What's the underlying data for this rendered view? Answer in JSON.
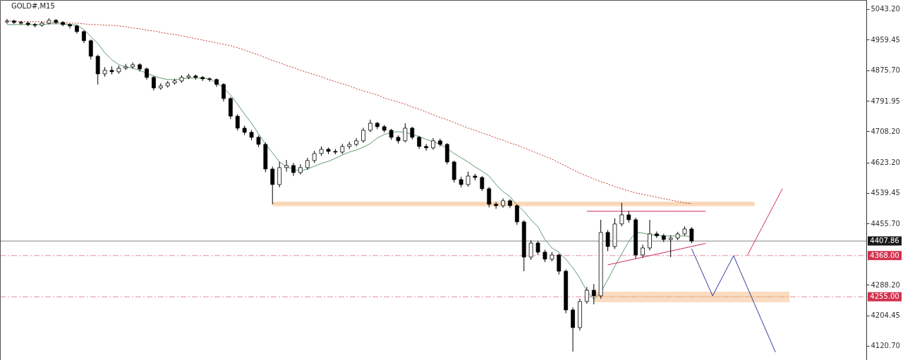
{
  "chart_data": {
    "type": "candlestick",
    "title": "GOLD#,M15",
    "categories": [
      null,
      null,
      null,
      null,
      null,
      null,
      null,
      null,
      null,
      null,
      null,
      null,
      null,
      null,
      null,
      null,
      null,
      null,
      null,
      null,
      null,
      null,
      null,
      null,
      null,
      null,
      null,
      null,
      null,
      null,
      null,
      null,
      null,
      null,
      null,
      null,
      null,
      null,
      null,
      null,
      null,
      null,
      null,
      null,
      null,
      null,
      null,
      null,
      null,
      null,
      null,
      null,
      null,
      null,
      null,
      null,
      null,
      null,
      null,
      null,
      null,
      null,
      null,
      null,
      null,
      null,
      null,
      null,
      null,
      null,
      null,
      null,
      null,
      null,
      null,
      null,
      null,
      null,
      null,
      null,
      null,
      null,
      null,
      null,
      null,
      null,
      null,
      null,
      null,
      null,
      null,
      null,
      null,
      null,
      null,
      null,
      null,
      null,
      null,
      null,
      null,
      null,
      null,
      null,
      null,
      null,
      null,
      null,
      null,
      null,
      null,
      null,
      null,
      null,
      null,
      null,
      null,
      null,
      null,
      null,
      null,
      null,
      null
    ],
    "ohlc": [
      [
        5008.0,
        5016,
        5003,
        5010.4
      ],
      [
        5010.4,
        5014,
        5002,
        5006.5
      ],
      [
        5006.5,
        5011,
        5000,
        5004.6
      ],
      [
        5004.6,
        5009,
        4996,
        5000.7
      ],
      [
        5000.7,
        5005,
        4993,
        4998.8
      ],
      [
        4998.8,
        5009,
        4995,
        5004.6
      ],
      [
        5004.6,
        5018,
        5001,
        5012.3
      ],
      [
        5012.3,
        5016,
        5002,
        5006.5
      ],
      [
        5006.5,
        5010,
        4996,
        5000.7
      ],
      [
        5000.7,
        5004,
        4990,
        4996.9
      ],
      [
        4996.9,
        5000,
        4976,
        4981.4
      ],
      [
        4981.4,
        4985,
        4950,
        4956.4
      ],
      [
        4956.4,
        4960,
        4905,
        4913.9
      ],
      [
        4913.9,
        4918,
        4836.7,
        4865.6
      ],
      [
        4865.6,
        4884,
        4858,
        4875.3
      ],
      [
        4875.3,
        4886,
        4864,
        4871.4
      ],
      [
        4871.4,
        4888,
        4866,
        4881.1
      ],
      [
        4881.1,
        4893,
        4876,
        4884.9
      ],
      [
        4884.9,
        4897,
        4880,
        4890.7
      ],
      [
        4890.7,
        4895,
        4872,
        4879.2
      ],
      [
        4879.2,
        4883,
        4850,
        4856.0
      ],
      [
        4856.0,
        4860,
        4820,
        4827.0
      ],
      [
        4827.0,
        4840,
        4822,
        4832.8
      ],
      [
        4832.8,
        4846,
        4828,
        4840.6
      ],
      [
        4840.6,
        4852,
        4836,
        4846.3
      ],
      [
        4846.3,
        4862,
        4841,
        4856.0
      ],
      [
        4856.0,
        4866,
        4851,
        4859.9
      ],
      [
        4859.9,
        4864,
        4850,
        4856.0
      ],
      [
        4856.0,
        4860,
        4846,
        4852.1
      ],
      [
        4852.1,
        4856,
        4844,
        4850.2
      ],
      [
        4850.2,
        4853,
        4830,
        4836.7
      ],
      [
        4836.7,
        4840,
        4790,
        4798.1
      ],
      [
        4798.1,
        4802,
        4742,
        4749.8
      ],
      [
        4749.8,
        4755,
        4710,
        4717.0
      ],
      [
        4717.0,
        4724,
        4698,
        4705.5
      ],
      [
        4705.5,
        4712,
        4684,
        4691.9
      ],
      [
        4691.9,
        4697,
        4665,
        4672.6
      ],
      [
        4672.6,
        4678,
        4596,
        4605.1
      ],
      [
        4605.1,
        4612,
        4508.6,
        4562.6
      ],
      [
        4562.6,
        4625,
        4555,
        4609.0
      ],
      [
        4609.0,
        4630,
        4598,
        4614.7
      ],
      [
        4614.7,
        4622,
        4586,
        4595.4
      ],
      [
        4595.4,
        4618,
        4590,
        4609.0
      ],
      [
        4609.0,
        4636,
        4603,
        4628.3
      ],
      [
        4628.3,
        4655,
        4622,
        4647.6
      ],
      [
        4647.6,
        4667,
        4641,
        4659.1
      ],
      [
        4659.1,
        4664,
        4646,
        4653.3
      ],
      [
        4653.3,
        4660,
        4645,
        4651.4
      ],
      [
        4651.4,
        4674,
        4646,
        4666.9
      ],
      [
        4666.9,
        4680,
        4660,
        4672.6
      ],
      [
        4672.6,
        4690,
        4667,
        4682.3
      ],
      [
        4682.3,
        4718,
        4677,
        4711.2
      ],
      [
        4711.2,
        4740.2,
        4706,
        4730.5
      ],
      [
        4730.5,
        4734,
        4714,
        4720.9
      ],
      [
        4720.9,
        4726,
        4705,
        4711.2
      ],
      [
        4711.2,
        4715,
        4685,
        4691.9
      ],
      [
        4691.9,
        4697,
        4675,
        4682.3
      ],
      [
        4682.3,
        4730.5,
        4678,
        4717.0
      ],
      [
        4717.0,
        4721,
        4686,
        4691.9
      ],
      [
        4691.9,
        4696,
        4660,
        4666.9
      ],
      [
        4666.9,
        4674,
        4655,
        4663.0
      ],
      [
        4663.0,
        4690,
        4658,
        4682.3
      ],
      [
        4682.3,
        4688,
        4667,
        4672.6
      ],
      [
        4672.6,
        4676,
        4618,
        4624.4
      ],
      [
        4624.4,
        4628,
        4568,
        4576.1
      ],
      [
        4576.1,
        4584,
        4555,
        4562.6
      ],
      [
        4562.6,
        4598,
        4557,
        4585.8
      ],
      [
        4585.8,
        4592,
        4574,
        4581.9
      ],
      [
        4581.9,
        4586,
        4545,
        4551.1
      ],
      [
        4551.1,
        4556,
        4500,
        4508.6
      ],
      [
        4508.6,
        4515,
        4496,
        4504.7
      ],
      [
        4504.7,
        4525,
        4499,
        4518.2
      ],
      [
        4518.2,
        4523,
        4498,
        4504.7
      ],
      [
        4504.7,
        4508,
        4452,
        4460.3
      ],
      [
        4460.3,
        4465,
        4325.2,
        4363.8
      ],
      [
        4363.8,
        4410,
        4356,
        4402.4
      ],
      [
        4402.4,
        4408,
        4370,
        4377.4
      ],
      [
        4377.4,
        4384,
        4350,
        4358.1
      ],
      [
        4358.1,
        4378,
        4352,
        4369.6
      ],
      [
        4369.6,
        4374,
        4316,
        4325.2
      ],
      [
        4325.2,
        4330,
        4210,
        4219.1
      ],
      [
        4219.1,
        4226,
        4105,
        4170.8
      ],
      [
        4170.8,
        4250,
        4163,
        4242.3
      ],
      [
        4242.3,
        4282,
        4236,
        4273.1
      ],
      [
        4273.1,
        4290,
        4234.5,
        4257.7
      ],
      [
        4257.7,
        4466.1,
        4250,
        4431.4
      ],
      [
        4431.4,
        4438,
        4380,
        4392.8
      ],
      [
        4392.8,
        4470,
        4386,
        4454.6
      ],
      [
        4454.6,
        4512.5,
        4448,
        4479.6
      ],
      [
        4479.6,
        4490,
        4458,
        4466.1
      ],
      [
        4466.1,
        4472,
        4360,
        4369.6
      ],
      [
        4369.6,
        4398,
        4362,
        4388.9
      ],
      [
        4388.9,
        4466.1,
        4382,
        4427.5
      ],
      [
        4427.5,
        4434,
        4416,
        4422.0
      ],
      [
        4422.0,
        4428,
        4405,
        4412.1
      ],
      [
        4412.1,
        4424,
        4363.8,
        4416.0
      ],
      [
        4416.0,
        4433,
        4410,
        4427.5
      ],
      [
        4427.5,
        4448,
        4422,
        4441.0
      ],
      [
        4441.0,
        4446,
        4402,
        4407.86
      ],
      null,
      null,
      null,
      null,
      null,
      null,
      null,
      null,
      null,
      null,
      null,
      null,
      null,
      null,
      null,
      null,
      null,
      null,
      null,
      null,
      null,
      null,
      null,
      null
    ],
    "series": [
      {
        "type": "line",
        "color": "#f6c594",
        "values": [
          null,
          null,
          null,
          null,
          null,
          null,
          null,
          null,
          null,
          null,
          null,
          null,
          null,
          null,
          null,
          null,
          null,
          null,
          null,
          null,
          null,
          null,
          null,
          null,
          null,
          null,
          null,
          null,
          null,
          null,
          null,
          null,
          null,
          null,
          null,
          null,
          null,
          null,
          4510,
          4510,
          4510,
          4510,
          4510,
          4510,
          4510,
          4510,
          4510,
          4510,
          4510,
          4510,
          4510,
          4510,
          4510,
          4510,
          4510,
          4510,
          4510,
          4510,
          4510,
          4510,
          4510,
          4510,
          4510,
          4510,
          4510,
          4510,
          4510,
          4510,
          4510,
          4510,
          4510,
          4510,
          4510,
          4510,
          4510,
          4510,
          4510,
          4510,
          4510,
          4510,
          4510,
          4510,
          4510,
          4510,
          4510,
          4510,
          4510,
          4510,
          4510,
          4510,
          4510,
          4510,
          4510,
          4510,
          4510,
          4510,
          4510,
          4510,
          4510,
          4510,
          4510,
          4510,
          4510,
          4510,
          4510,
          4510,
          4510,
          4510,
          null,
          null,
          null,
          null,
          null,
          null,
          null,
          null,
          null,
          null,
          null,
          null,
          null,
          null,
          null
        ],
        "upper": [
          null,
          null,
          null,
          null,
          null,
          null,
          null,
          null,
          null,
          null,
          null,
          null,
          null,
          null,
          null,
          null,
          null,
          null,
          null,
          null,
          null,
          null,
          null,
          null,
          null,
          null,
          null,
          null,
          null,
          null,
          null,
          null,
          null,
          null,
          null,
          null,
          null,
          null,
          4516.3,
          4516.3,
          4516.3,
          4516.3,
          4516.3,
          4516.3,
          4516.3,
          4516.3,
          4516.3,
          4516.3,
          4516.3,
          4516.3,
          4516.3,
          4516.3,
          4516.3,
          4516.3,
          4516.3,
          4516.3,
          4516.3,
          4516.3,
          4516.3,
          4516.3,
          4516.3,
          4516.3,
          4516.3,
          4516.3,
          4516.3,
          4516.3,
          4516.3,
          4516.3,
          4516.3,
          4516.3,
          4516.3,
          4516.3,
          4516.3,
          4516.3,
          4516.3,
          4516.3,
          4516.3,
          4516.3,
          4516.3,
          4516.3,
          4516.3,
          4516.3,
          4516.3,
          4516.3,
          4516.3,
          4516.3,
          4516.3,
          4516.3,
          4516.3,
          4516.3,
          4516.3,
          4516.3,
          4516.3,
          4516.3,
          4516.3,
          4516.3,
          4516.3,
          4516.3,
          4516.3,
          4516.3,
          4516.3,
          4516.3,
          4516.3,
          4516.3,
          4516.3,
          4516.3,
          4516.3,
          4516.3,
          null,
          null,
          null,
          null,
          null,
          null,
          null,
          null,
          null,
          null,
          null,
          null,
          null,
          null,
          null
        ],
        "lower": [
          null,
          null,
          null,
          null,
          null,
          null,
          null,
          null,
          null,
          null,
          null,
          null,
          null,
          null,
          null,
          null,
          null,
          null,
          null,
          null,
          null,
          null,
          null,
          null,
          null,
          null,
          null,
          null,
          null,
          null,
          null,
          null,
          null,
          null,
          null,
          null,
          null,
          null,
          4502.8,
          4502.8,
          4502.8,
          4502.8,
          4502.8,
          4502.8,
          4502.8,
          4502.8,
          4502.8,
          4502.8,
          4502.8,
          4502.8,
          4502.8,
          4502.8,
          4502.8,
          4502.8,
          4502.8,
          4502.8,
          4502.8,
          4502.8,
          4502.8,
          4502.8,
          4502.8,
          4502.8,
          4502.8,
          4502.8,
          4502.8,
          4502.8,
          4502.8,
          4502.8,
          4502.8,
          4502.8,
          4502.8,
          4502.8,
          4502.8,
          4502.8,
          4502.8,
          4502.8,
          4502.8,
          4502.8,
          4502.8,
          4502.8,
          4502.8,
          4502.8,
          4502.8,
          4502.8,
          4502.8,
          4502.8,
          4502.8,
          4502.8,
          4502.8,
          4502.8,
          4502.8,
          4502.8,
          4502.8,
          4502.8,
          4502.8,
          4502.8,
          4502.8,
          4502.8,
          4502.8,
          4502.8,
          4502.8,
          4502.8,
          4502.8,
          4502.8,
          4502.8,
          4502.8,
          4502.8,
          4502.8,
          null,
          null,
          null,
          null,
          null,
          null,
          null,
          null,
          null,
          null,
          null,
          null,
          null,
          null,
          null
        ]
      },
      {
        "type": "line",
        "color": "#f4c08e",
        "values": [
          null,
          null,
          null,
          null,
          null,
          null,
          null,
          null,
          null,
          null,
          null,
          null,
          null,
          null,
          null,
          null,
          null,
          null,
          null,
          null,
          null,
          null,
          null,
          null,
          null,
          null,
          null,
          null,
          null,
          null,
          null,
          null,
          null,
          null,
          null,
          null,
          null,
          null,
          null,
          null,
          null,
          null,
          null,
          null,
          null,
          null,
          null,
          null,
          null,
          null,
          null,
          null,
          null,
          null,
          null,
          null,
          null,
          null,
          null,
          null,
          null,
          null,
          null,
          null,
          null,
          null,
          null,
          null,
          null,
          null,
          null,
          null,
          null,
          null,
          null,
          null,
          null,
          null,
          null,
          null,
          null,
          null,
          null,
          null,
          4255,
          4255,
          4255,
          4255,
          4255,
          4255,
          4255,
          4255,
          4255,
          4255,
          4255,
          4255,
          4255,
          4255,
          4255,
          4255,
          4255,
          4255,
          4255,
          4255,
          4255,
          4255,
          4255,
          4255,
          4255,
          4255,
          4255,
          4255,
          4255,
          null,
          null,
          null,
          null,
          null,
          null,
          null,
          null,
          null,
          null
        ],
        "upper": [
          null,
          null,
          null,
          null,
          null,
          null,
          null,
          null,
          null,
          null,
          null,
          null,
          null,
          null,
          null,
          null,
          null,
          null,
          null,
          null,
          null,
          null,
          null,
          null,
          null,
          null,
          null,
          null,
          null,
          null,
          null,
          null,
          null,
          null,
          null,
          null,
          null,
          null,
          null,
          null,
          null,
          null,
          null,
          null,
          null,
          null,
          null,
          null,
          null,
          null,
          null,
          null,
          null,
          null,
          null,
          null,
          null,
          null,
          null,
          null,
          null,
          null,
          null,
          null,
          null,
          null,
          null,
          null,
          null,
          null,
          null,
          null,
          null,
          null,
          null,
          null,
          null,
          null,
          null,
          null,
          null,
          null,
          null,
          null,
          4269.3,
          4269.3,
          4269.3,
          4269.3,
          4269.3,
          4269.3,
          4269.3,
          4269.3,
          4269.3,
          4269.3,
          4269.3,
          4269.3,
          4269.3,
          4269.3,
          4269.3,
          4269.3,
          4269.3,
          4269.3,
          4269.3,
          4269.3,
          4269.3,
          4269.3,
          4269.3,
          4269.3,
          4269.3,
          4269.3,
          4269.3,
          4269.3,
          4269.3,
          null,
          null,
          null,
          null,
          null,
          null,
          null,
          null,
          null,
          null
        ],
        "lower": [
          null,
          null,
          null,
          null,
          null,
          null,
          null,
          null,
          null,
          null,
          null,
          null,
          null,
          null,
          null,
          null,
          null,
          null,
          null,
          null,
          null,
          null,
          null,
          null,
          null,
          null,
          null,
          null,
          null,
          null,
          null,
          null,
          null,
          null,
          null,
          null,
          null,
          null,
          null,
          null,
          null,
          null,
          null,
          null,
          null,
          null,
          null,
          null,
          null,
          null,
          null,
          null,
          null,
          null,
          null,
          null,
          null,
          null,
          null,
          null,
          null,
          null,
          null,
          null,
          null,
          null,
          null,
          null,
          null,
          null,
          null,
          null,
          null,
          null,
          null,
          null,
          null,
          null,
          null,
          null,
          null,
          null,
          null,
          null,
          4240.3,
          4240.3,
          4240.3,
          4240.3,
          4240.3,
          4240.3,
          4240.3,
          4240.3,
          4240.3,
          4240.3,
          4240.3,
          4240.3,
          4240.3,
          4240.3,
          4240.3,
          4240.3,
          4240.3,
          4240.3,
          4240.3,
          4240.3,
          4240.3,
          4240.3,
          4240.3,
          4240.3,
          4240.3,
          4240.3,
          4240.3,
          4240.3,
          4240.3,
          null,
          null,
          null,
          null,
          null,
          null,
          null,
          null,
          null,
          null
        ]
      },
      {
        "type": "line",
        "color": "#5f9a6a",
        "line_style": "solid",
        "values": [
          5000.7,
          5000.7,
          5000.7,
          5000.7,
          5000.7,
          5000.7,
          5002.7,
          5002.7,
          5002.7,
          5000.7,
          4998.8,
          4987.2,
          4967.9,
          4948.6,
          4923.6,
          4904.3,
          4890.7,
          4884.9,
          4881.1,
          4875.3,
          4867.6,
          4859.9,
          4854.1,
          4850.2,
          4850.2,
          4852.1,
          4854.1,
          4854.1,
          4854.1,
          4852.1,
          4840.6,
          4827.0,
          4807.8,
          4782.7,
          4755.6,
          4730.6,
          4701.6,
          4672.6,
          4649.5,
          4624.4,
          4610.9,
          4605.1,
          4599.3,
          4605.1,
          4612.8,
          4620.5,
          4626.3,
          4634.1,
          4643.7,
          4651.4,
          4657.2,
          4664.9,
          4674.6,
          4690.0,
          4699.7,
          4705.5,
          4707.4,
          4705.5,
          4699.7,
          4693.9,
          4686.2,
          4680.4,
          4672.6,
          4661.1,
          4647.6,
          4636.0,
          4624.4,
          4610.9,
          4599.3,
          4585.8,
          4562.6,
          4543.3,
          4529.8,
          4506.7,
          4489.3,
          4466.1,
          4446.8,
          4412.1,
          4388.9,
          4377.4,
          4358.1,
          4334.9,
          4306.0,
          4271.2,
          4248.1,
          4267.3,
          4302.1,
          4338.8,
          4373.5,
          4406.3,
          4431.4,
          4429.5,
          4425.6,
          4423.7,
          4421.8,
          4421.8,
          4421.8,
          4421.8,
          4419.8,
          null,
          null,
          null,
          null,
          null,
          null,
          null,
          null,
          null,
          null,
          null,
          null,
          null,
          null,
          null,
          null,
          null,
          null,
          null,
          null,
          null,
          null,
          null,
          null
        ]
      },
      {
        "type": "line",
        "color": "#c0392b",
        "line_style": "dotted",
        "values": [
          5010.4,
          5010.4,
          5008.5,
          5008.5,
          5008.5,
          5008.5,
          5006.5,
          5006.5,
          5006.5,
          5004.6,
          5004.6,
          5002.7,
          5000.7,
          5000.7,
          4998.8,
          4998.8,
          4996.9,
          4994.9,
          4991.1,
          4989.2,
          4985.3,
          4983.4,
          4979.5,
          4975.7,
          4973.7,
          4969.9,
          4966.0,
          4962.2,
          4958.3,
          4954.4,
          4950.6,
          4946.7,
          4942.9,
          4937.1,
          4931.3,
          4923.6,
          4917.8,
          4910.0,
          4902.3,
          4896.5,
          4888.8,
          4883.0,
          4875.3,
          4869.5,
          4863.7,
          4857.9,
          4850.2,
          4844.4,
          4838.6,
          4832.8,
          4825.1,
          4819.3,
          4813.5,
          4807.8,
          4800.0,
          4794.2,
          4788.4,
          4782.7,
          4774.9,
          4769.2,
          4761.4,
          4753.7,
          4746.0,
          4740.2,
          4732.5,
          4724.8,
          4717.0,
          4711.3,
          4703.5,
          4697.7,
          4690.0,
          4684.2,
          4676.5,
          4670.7,
          4663.0,
          4655.3,
          4647.6,
          4639.8,
          4632.1,
          4622.5,
          4612.8,
          4603.2,
          4593.5,
          4585.8,
          4578.1,
          4570.4,
          4564.6,
          4556.9,
          4551.1,
          4545.3,
          4539.5,
          4535.6,
          4531.8,
          4527.9,
          4524.0,
          4520.2,
          4516.3,
          4512.5,
          4510.5,
          null,
          null,
          null,
          null,
          null,
          null,
          null,
          null,
          null,
          null,
          null,
          null,
          null,
          null,
          null,
          null,
          null,
          null,
          null,
          null,
          null,
          null,
          null,
          null
        ]
      },
      {
        "type": "line",
        "color": "#c8285a",
        "line_style": "solid",
        "values": [
          null,
          null,
          null,
          null,
          null,
          null,
          null,
          null,
          null,
          null,
          null,
          null,
          null,
          null,
          null,
          null,
          null,
          null,
          null,
          null,
          null,
          null,
          null,
          null,
          null,
          null,
          null,
          null,
          null,
          null,
          null,
          null,
          null,
          null,
          null,
          null,
          null,
          null,
          null,
          null,
          null,
          null,
          null,
          null,
          null,
          null,
          null,
          null,
          null,
          null,
          null,
          null,
          null,
          null,
          null,
          null,
          null,
          null,
          null,
          null,
          null,
          null,
          null,
          null,
          null,
          null,
          null,
          null,
          null,
          null,
          null,
          null,
          null,
          null,
          null,
          null,
          null,
          null,
          null,
          null,
          null,
          null,
          null,
          4489.3,
          4489.3,
          4489.3,
          4489.3,
          4489.3,
          4489.3,
          4489.3,
          4489.3,
          4489.3,
          4489.3,
          4489.3,
          4489.3,
          4489.3,
          4489.3,
          4489.3,
          4489.3,
          4489.3,
          4489.3,
          null,
          null,
          null,
          null,
          null,
          null,
          null,
          null,
          null,
          null,
          null,
          null,
          null,
          null,
          null,
          null,
          null,
          null,
          null,
          null,
          null,
          null
        ]
      },
      {
        "type": "line",
        "color": "#c8285a",
        "line_style": "solid",
        "values": [
          null,
          null,
          null,
          null,
          null,
          null,
          null,
          null,
          null,
          null,
          null,
          null,
          null,
          null,
          null,
          null,
          null,
          null,
          null,
          null,
          null,
          null,
          null,
          null,
          null,
          null,
          null,
          null,
          null,
          null,
          null,
          null,
          null,
          null,
          null,
          null,
          null,
          null,
          null,
          null,
          null,
          null,
          null,
          null,
          null,
          null,
          null,
          null,
          null,
          null,
          null,
          null,
          null,
          null,
          null,
          null,
          null,
          null,
          null,
          null,
          null,
          null,
          null,
          null,
          null,
          null,
          null,
          null,
          null,
          null,
          null,
          null,
          null,
          null,
          null,
          null,
          null,
          null,
          null,
          null,
          null,
          null,
          null,
          null,
          null,
          null,
          4342.6,
          4346.8,
          4351.0,
          4355.2,
          4359.4,
          4363.5,
          4367.7,
          4371.9,
          4376.1,
          4380.3,
          4384.5,
          4388.7,
          4392.9,
          4397.1,
          4401.3,
          null,
          null,
          null,
          null,
          null,
          null,
          null,
          null,
          null,
          null,
          null,
          null,
          null,
          null,
          null,
          null,
          null,
          null,
          null,
          null,
          null,
          null
        ]
      },
      {
        "type": "line",
        "color": "#2b3a9c",
        "line_style": "solid",
        "values": [
          null,
          null,
          null,
          null,
          null,
          null,
          null,
          null,
          null,
          null,
          null,
          null,
          null,
          null,
          null,
          null,
          null,
          null,
          null,
          null,
          null,
          null,
          null,
          null,
          null,
          null,
          null,
          null,
          null,
          null,
          null,
          null,
          null,
          null,
          null,
          null,
          null,
          null,
          null,
          null,
          null,
          null,
          null,
          null,
          null,
          null,
          null,
          null,
          null,
          null,
          null,
          null,
          null,
          null,
          null,
          null,
          null,
          null,
          null,
          null,
          null,
          null,
          null,
          null,
          null,
          null,
          null,
          null,
          null,
          null,
          null,
          null,
          null,
          null,
          null,
          null,
          null,
          null,
          null,
          null,
          null,
          null,
          null,
          null,
          null,
          null,
          null,
          null,
          null,
          null,
          null,
          null,
          null,
          null,
          null,
          null,
          null,
          null,
          4387.0,
          4343.9,
          4300.8,
          4257.7,
          4294.4,
          4331.0,
          4367.7,
          4323.6,
          4279.6,
          4235.5,
          4191.4,
          4147.4,
          4103.3,
          null,
          null,
          null,
          null,
          null,
          null,
          null,
          null,
          null,
          null,
          null,
          null
        ]
      },
      {
        "type": "line",
        "color": "#d2334f",
        "line_style": "solid",
        "values": [
          null,
          null,
          null,
          null,
          null,
          null,
          null,
          null,
          null,
          null,
          null,
          null,
          null,
          null,
          null,
          null,
          null,
          null,
          null,
          null,
          null,
          null,
          null,
          null,
          null,
          null,
          null,
          null,
          null,
          null,
          null,
          null,
          null,
          null,
          null,
          null,
          null,
          null,
          null,
          null,
          null,
          null,
          null,
          null,
          null,
          null,
          null,
          null,
          null,
          null,
          null,
          null,
          null,
          null,
          null,
          null,
          null,
          null,
          null,
          null,
          null,
          null,
          null,
          null,
          null,
          null,
          null,
          null,
          null,
          null,
          null,
          null,
          null,
          null,
          null,
          null,
          null,
          null,
          null,
          null,
          null,
          null,
          null,
          null,
          null,
          null,
          null,
          null,
          null,
          null,
          null,
          null,
          null,
          null,
          null,
          null,
          null,
          null,
          null,
          null,
          null,
          null,
          null,
          null,
          null,
          null,
          4369.6,
          4405.9,
          4442.2,
          4478.5,
          4514.8,
          4551.1,
          null,
          null,
          null,
          null,
          null,
          null,
          null,
          null,
          null,
          null,
          null
        ]
      }
    ],
    "ref_lines": [
      {
        "axis": "y",
        "value": 4407.86,
        "label": "4407.86",
        "color": "#1a1a1a",
        "line_style": "solid"
      },
      {
        "axis": "y",
        "value": 4368,
        "label": "4368.00",
        "color": "#d2334f",
        "line_style": "dashed"
      },
      {
        "axis": "y",
        "value": 4255,
        "label": "4255.00",
        "color": "#d2334f",
        "line_style": "dashed"
      }
    ],
    "ylim": [
      4082,
      5068
    ],
    "yticks": [
      {
        "value": 5043.2,
        "label": "5043.20"
      },
      {
        "value": 4959.45,
        "label": "4959.45"
      },
      {
        "value": 4875.7,
        "label": "4875.70"
      },
      {
        "value": 4791.95,
        "label": "4791.95"
      },
      {
        "value": 4708.2,
        "label": "4708.20"
      },
      {
        "value": 4623.2,
        "label": "4623.20"
      },
      {
        "value": 4539.45,
        "label": "4539.45"
      },
      {
        "value": 4455.7,
        "label": "4455.70"
      },
      {
        "value": 4288.2,
        "label": "4288.20"
      },
      {
        "value": 4204.45,
        "label": "4204.45"
      },
      {
        "value": 4120.7,
        "label": "4120.70"
      }
    ],
    "tick_labels": "y"
  }
}
